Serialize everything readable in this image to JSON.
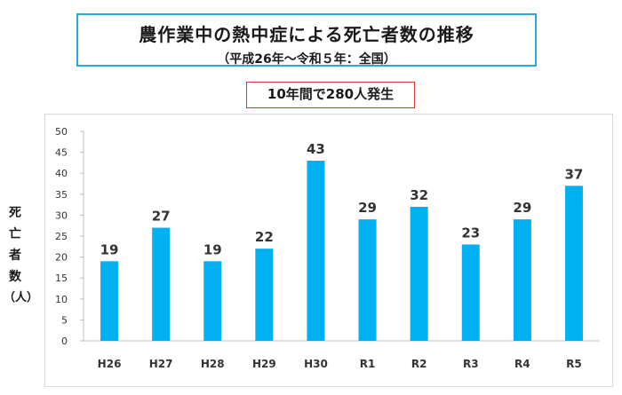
{
  "header": {
    "title": "農作業中の熱中症による死亡者数の推移",
    "subtitle": "（平成26年～令和５年：全国）"
  },
  "summary": "10年間で280人発生",
  "chart_data": {
    "type": "bar",
    "categories": [
      "H26",
      "H27",
      "H28",
      "H29",
      "H30",
      "R1",
      "R2",
      "R3",
      "R4",
      "R5"
    ],
    "values": [
      19,
      27,
      19,
      22,
      43,
      29,
      32,
      23,
      29,
      37
    ],
    "ylabel_chars": [
      "死",
      "亡",
      "者",
      "数",
      "（人）"
    ],
    "ylim": [
      0,
      50
    ],
    "yticks": [
      0,
      5,
      10,
      15,
      20,
      25,
      30,
      35,
      40,
      45,
      50
    ],
    "grid": false,
    "legend": "none",
    "bar_color": "#00b0f0",
    "axis_color": "#bfbfbf"
  }
}
